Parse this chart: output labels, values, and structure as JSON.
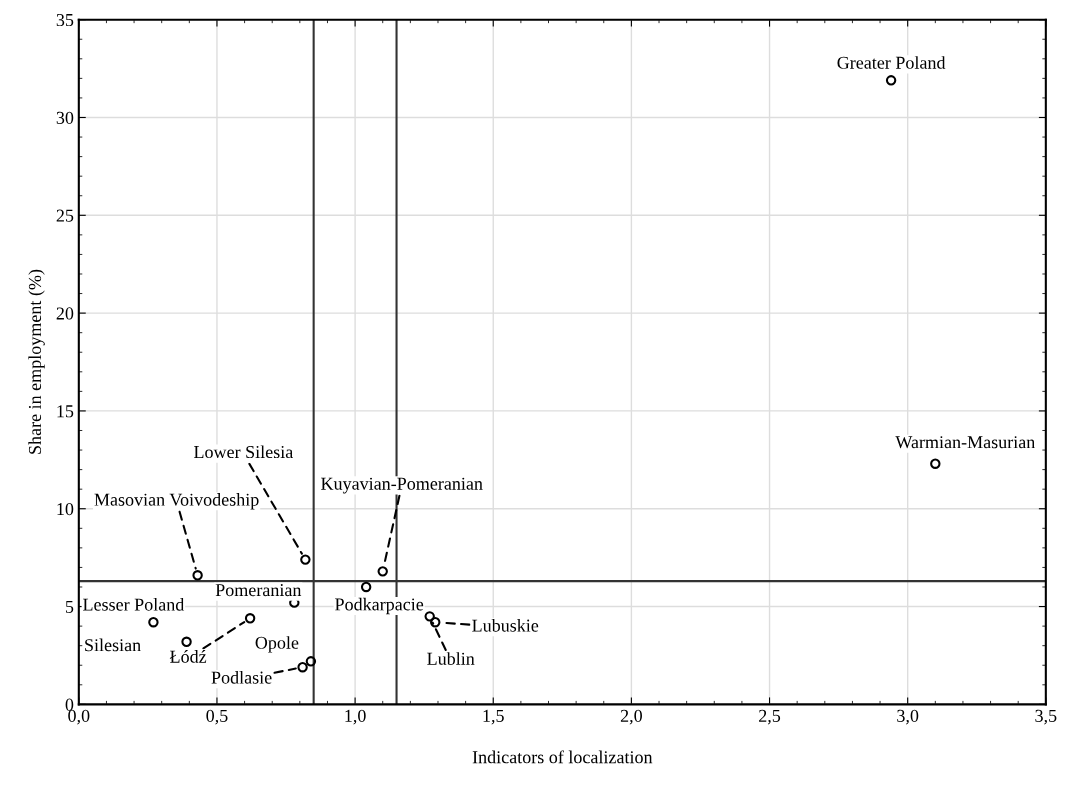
{
  "chart_data": {
    "type": "scatter",
    "xlabel": "Indicators of localization",
    "ylabel": "Share in employment (%)",
    "xlim": [
      0,
      3.5
    ],
    "ylim": [
      0,
      35
    ],
    "xticks": [
      {
        "value": 0,
        "label": "0,0"
      },
      {
        "value": 0.5,
        "label": "0,5"
      },
      {
        "value": 1,
        "label": "1,0"
      },
      {
        "value": 1.5,
        "label": "1,5"
      },
      {
        "value": 2,
        "label": "2,0"
      },
      {
        "value": 2.5,
        "label": "2,5"
      },
      {
        "value": 3,
        "label": "3,0"
      },
      {
        "value": 3.5,
        "label": "3,5"
      }
    ],
    "yticks": [
      0,
      5,
      10,
      15,
      20,
      25,
      30,
      35
    ],
    "grid": true,
    "marker": "circle",
    "series": [
      {
        "color": "#000000",
        "x": [
          2.94,
          3.1,
          0.43,
          0.82,
          1.1,
          1.04,
          0.78,
          0.27,
          0.39,
          0.62,
          0.84,
          0.81,
          1.29,
          1.27
        ],
        "values": [
          31.9,
          12.3,
          6.6,
          7.4,
          6.8,
          6.0,
          5.2,
          4.2,
          3.2,
          4.4,
          2.2,
          1.9,
          4.2,
          4.5
        ]
      }
    ],
    "annotations": [
      {
        "text": "Greater Poland",
        "x": 2.94,
        "y": 31.9
      },
      {
        "text": "Warmian-Masurian",
        "x": 3.1,
        "y": 12.3
      },
      {
        "text": "Masovian Voivodeship",
        "x": 0.43,
        "y": 6.6
      },
      {
        "text": "Lower Silesia",
        "x": 0.82,
        "y": 7.4
      },
      {
        "text": "Kuyavian-Pomeranian",
        "x": 1.1,
        "y": 6.8
      },
      {
        "text": "Podkarpacie",
        "x": 1.04,
        "y": 6.0
      },
      {
        "text": "Pomeranian",
        "x": 0.78,
        "y": 5.2
      },
      {
        "text": "Lesser Poland",
        "x": 0.27,
        "y": 4.2
      },
      {
        "text": "Silesian",
        "x": 0.39,
        "y": 3.2
      },
      {
        "text": "Łódź",
        "x": 0.62,
        "y": 4.4
      },
      {
        "text": "Opole",
        "x": 0.84,
        "y": 2.2
      },
      {
        "text": "Podlasie",
        "x": 0.81,
        "y": 1.9
      },
      {
        "text": "Lubuskie",
        "x": 1.29,
        "y": 4.2
      },
      {
        "text": "Lublin",
        "x": 1.27,
        "y": 4.5
      }
    ],
    "ref_lines": [
      {
        "axis": "x",
        "value": 0.85,
        "color": "#333333"
      },
      {
        "axis": "x",
        "value": 1.15,
        "color": "#333333"
      },
      {
        "axis": "y",
        "value": 6.3,
        "color": "#333333"
      }
    ]
  }
}
